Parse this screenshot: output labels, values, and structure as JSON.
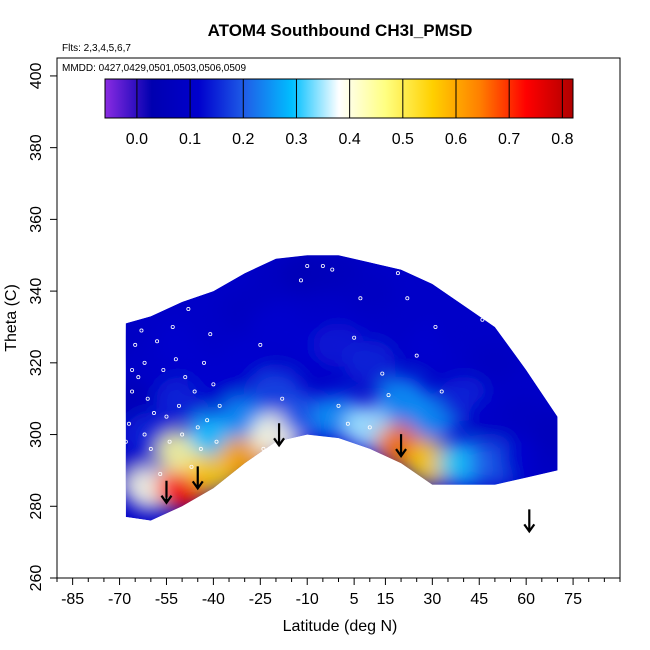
{
  "chart_data": {
    "type": "heatmap",
    "title": "ATOM4 Southbound CH3I_PMSD",
    "subtitle_flights": "Flts: 2,3,4,5,6,7",
    "subtitle_dates": "MMDD: 0427,0429,0501,0503,0506,0509",
    "xlabel": "Latitude (deg N)",
    "ylabel": "Theta (C)",
    "xlim": [
      -90,
      90
    ],
    "ylim": [
      260,
      405
    ],
    "x_ticks": [
      -85,
      -70,
      -55,
      -40,
      -25,
      -10,
      5,
      15,
      30,
      45,
      60,
      75
    ],
    "y_ticks": [
      260,
      280,
      300,
      320,
      340,
      360,
      380,
      400
    ],
    "colorbar": {
      "range": [
        -0.06,
        0.82
      ],
      "ticks": [
        0.0,
        0.1,
        0.2,
        0.3,
        0.4,
        0.5,
        0.6,
        0.7,
        0.8
      ],
      "tick_labels": [
        "0.0",
        "0.1",
        "0.2",
        "0.3",
        "0.4",
        "0.5",
        "0.6",
        "0.7",
        "0.8"
      ],
      "colors": [
        "#8a2be2",
        "#0000b0",
        "#0000cd",
        "#1f5fe8",
        "#00bfff",
        "#ffffff",
        "#ffff80",
        "#ffd000",
        "#ff8000",
        "#ff0000",
        "#b00000"
      ]
    },
    "field": {
      "lat": [
        -68,
        -60,
        -50,
        -40,
        -30,
        -20,
        -10,
        0,
        10,
        20,
        30,
        40,
        50,
        60,
        70
      ],
      "theta_top": [
        331,
        333,
        337,
        340,
        345,
        349,
        350,
        350,
        348,
        346,
        342,
        336,
        330,
        318,
        305
      ],
      "theta_bottom": [
        277,
        276,
        280,
        285,
        292,
        298,
        300,
        299,
        296,
        292,
        286,
        286,
        286,
        288,
        290
      ],
      "cells": [
        [
          -68,
          290,
          0.1
        ],
        [
          -68,
          310,
          0.05
        ],
        [
          -68,
          325,
          0.08
        ],
        [
          -60,
          285,
          0.4
        ],
        [
          -60,
          300,
          0.15
        ],
        [
          -60,
          320,
          0.1
        ],
        [
          -50,
          285,
          0.72
        ],
        [
          -50,
          295,
          0.45
        ],
        [
          -50,
          310,
          0.15
        ],
        [
          -50,
          325,
          0.12
        ],
        [
          -40,
          290,
          0.55
        ],
        [
          -40,
          300,
          0.3
        ],
        [
          -40,
          315,
          0.12
        ],
        [
          -40,
          330,
          0.1
        ],
        [
          -30,
          294,
          0.6
        ],
        [
          -30,
          305,
          0.25
        ],
        [
          -30,
          320,
          0.12
        ],
        [
          -30,
          335,
          0.08
        ],
        [
          -20,
          300,
          0.4
        ],
        [
          -20,
          312,
          0.18
        ],
        [
          -20,
          330,
          0.12
        ],
        [
          -20,
          344,
          0.08
        ],
        [
          -10,
          305,
          0.2
        ],
        [
          -10,
          325,
          0.12
        ],
        [
          -10,
          345,
          0.05
        ],
        [
          0,
          305,
          0.25
        ],
        [
          0,
          325,
          0.14
        ],
        [
          0,
          345,
          0.06
        ],
        [
          10,
          302,
          0.35
        ],
        [
          10,
          320,
          0.15
        ],
        [
          10,
          340,
          0.08
        ],
        [
          20,
          297,
          0.65
        ],
        [
          20,
          310,
          0.25
        ],
        [
          20,
          330,
          0.1
        ],
        [
          30,
          292,
          0.55
        ],
        [
          30,
          305,
          0.25
        ],
        [
          30,
          325,
          0.12
        ],
        [
          40,
          292,
          0.3
        ],
        [
          40,
          310,
          0.15
        ],
        [
          40,
          328,
          0.1
        ],
        [
          50,
          292,
          0.2
        ],
        [
          50,
          305,
          0.1
        ],
        [
          50,
          320,
          0.08
        ],
        [
          60,
          293,
          0.12
        ],
        [
          60,
          305,
          0.08
        ],
        [
          70,
          292,
          0.08
        ],
        [
          70,
          300,
          0.06
        ]
      ]
    },
    "arrows": [
      {
        "lat": -55,
        "theta": 281
      },
      {
        "lat": -45,
        "theta": 285
      },
      {
        "lat": -19,
        "theta": 297
      },
      {
        "lat": 20,
        "theta": 294
      },
      {
        "lat": 61,
        "theta": 273
      }
    ],
    "sample_points": [
      [
        -68,
        298
      ],
      [
        -67,
        303
      ],
      [
        -66,
        312
      ],
      [
        -66,
        318
      ],
      [
        -65,
        325
      ],
      [
        -64,
        316
      ],
      [
        -63,
        329
      ],
      [
        -62,
        300
      ],
      [
        -62,
        320
      ],
      [
        -61,
        310
      ],
      [
        -60,
        296
      ],
      [
        -59,
        306
      ],
      [
        -58,
        326
      ],
      [
        -57,
        289
      ],
      [
        -56,
        318
      ],
      [
        -55,
        305
      ],
      [
        -55,
        282
      ],
      [
        -54,
        298
      ],
      [
        -53,
        330
      ],
      [
        -52,
        321
      ],
      [
        -51,
        308
      ],
      [
        -50,
        300
      ],
      [
        -49,
        316
      ],
      [
        -48,
        335
      ],
      [
        -47,
        291
      ],
      [
        -46,
        312
      ],
      [
        -45,
        302
      ],
      [
        -44,
        296
      ],
      [
        -43,
        320
      ],
      [
        -42,
        304
      ],
      [
        -41,
        328
      ],
      [
        -40,
        314
      ],
      [
        -39,
        298
      ],
      [
        -38,
        308
      ],
      [
        -25,
        325
      ],
      [
        -24,
        296
      ],
      [
        -18,
        310
      ],
      [
        -12,
        343
      ],
      [
        -10,
        347
      ],
      [
        -5,
        347
      ],
      [
        -2,
        346
      ],
      [
        0,
        308
      ],
      [
        3,
        303
      ],
      [
        5,
        327
      ],
      [
        7,
        338
      ],
      [
        10,
        302
      ],
      [
        14,
        317
      ],
      [
        16,
        311
      ],
      [
        19,
        345
      ],
      [
        22,
        338
      ],
      [
        25,
        322
      ],
      [
        31,
        330
      ],
      [
        33,
        312
      ],
      [
        46,
        332
      ],
      [
        48,
        333
      ]
    ]
  }
}
